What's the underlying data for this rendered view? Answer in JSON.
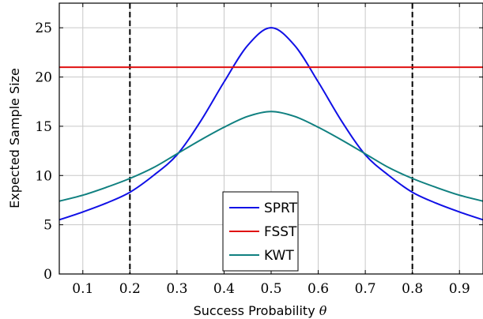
{
  "chart_data": {
    "type": "line",
    "xlabel_text": "Success Probability ",
    "xlabel_symbol": "θ",
    "ylabel": "Expected Sample Size",
    "xlim": [
      0.05,
      0.95
    ],
    "ylim": [
      0,
      27.5
    ],
    "xticks": [
      0.1,
      0.2,
      0.3,
      0.4,
      0.5,
      0.6,
      0.7,
      0.8,
      0.9
    ],
    "yticks": [
      0,
      5,
      10,
      15,
      20,
      25
    ],
    "grid": true,
    "legend_position": "bottom-center",
    "vlines": [
      0.2,
      0.8
    ],
    "series": [
      {
        "name": "SPRT",
        "color": "#1010e6",
        "x": [
          0.05,
          0.1,
          0.15,
          0.2,
          0.25,
          0.3,
          0.35,
          0.4,
          0.45,
          0.5,
          0.55,
          0.6,
          0.65,
          0.7,
          0.75,
          0.8,
          0.85,
          0.9,
          0.95
        ],
        "y": [
          5.5,
          6.3,
          7.2,
          8.3,
          10.0,
          12.1,
          15.5,
          19.5,
          23.2,
          25.0,
          23.2,
          19.5,
          15.5,
          12.1,
          10.0,
          8.3,
          7.2,
          6.3,
          5.5
        ]
      },
      {
        "name": "FSST",
        "color": "#e01010",
        "x": [
          0.05,
          0.95
        ],
        "y": [
          21,
          21
        ]
      },
      {
        "name": "KWT",
        "color": "#108080",
        "x": [
          0.05,
          0.1,
          0.15,
          0.2,
          0.25,
          0.3,
          0.35,
          0.4,
          0.45,
          0.5,
          0.55,
          0.6,
          0.65,
          0.7,
          0.75,
          0.8,
          0.85,
          0.9,
          0.95
        ],
        "y": [
          7.4,
          8.0,
          8.8,
          9.7,
          10.8,
          12.2,
          13.6,
          14.9,
          16.0,
          16.5,
          16.0,
          14.9,
          13.6,
          12.2,
          10.8,
          9.7,
          8.8,
          8.0,
          7.4
        ]
      }
    ]
  }
}
